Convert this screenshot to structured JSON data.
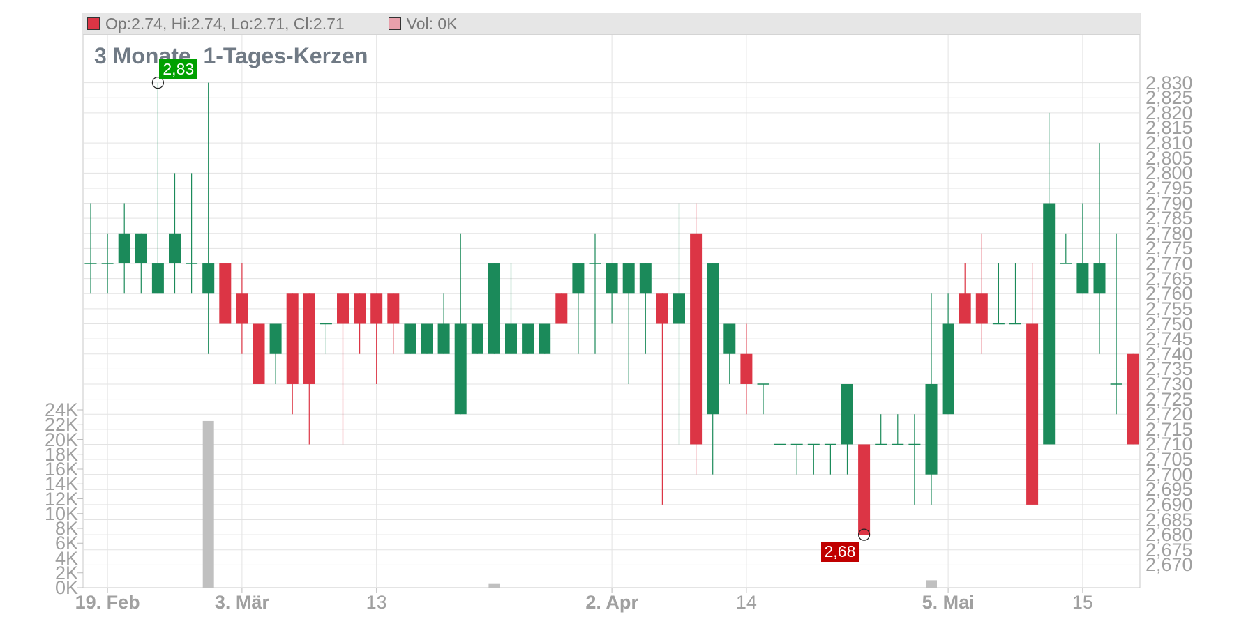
{
  "info_bar": {
    "ohlc_text": "Op:2.74, Hi:2.74, Lo:2.71, Cl:2.71",
    "volume_text": "Vol: 0K",
    "ohlc_swatch_color": "#dc3545",
    "volume_swatch_color": "#e8a0ab"
  },
  "colors": {
    "up": "#1b8a5a",
    "down": "#dc3545",
    "volume": "#c0c0c0",
    "high_flag": "#00a000",
    "low_flag": "#c00000"
  },
  "chart_data": {
    "type": "candlestick",
    "title": "3 Monate, 1-Tages-Kerzen",
    "price_axis": {
      "range": [
        2.665,
        2.835
      ],
      "ticks": [
        "2,830",
        "2,825",
        "2,820",
        "2,815",
        "2,810",
        "2,805",
        "2,800",
        "2,795",
        "2,790",
        "2,785",
        "2,780",
        "2,775",
        "2,770",
        "2,765",
        "2,760",
        "2,755",
        "2,750",
        "2,745",
        "2,740",
        "2,735",
        "2,730",
        "2,725",
        "2,720",
        "2,715",
        "2,710",
        "2,705",
        "2,700",
        "2,695",
        "2,690",
        "2,685",
        "2,680",
        "2,675",
        "2,670"
      ]
    },
    "volume_axis": {
      "range": [
        0,
        24000
      ],
      "ticks": [
        "24K",
        "22K",
        "20K",
        "18K",
        "16K",
        "14K",
        "12K",
        "10K",
        "8K",
        "6K",
        "4K",
        "2K",
        "0K"
      ]
    },
    "x_axis": [
      {
        "label": "19. Feb",
        "index": 1,
        "bold": true
      },
      {
        "label": "3. Mär",
        "index": 9,
        "bold": true
      },
      {
        "label": "13",
        "index": 17,
        "bold": false
      },
      {
        "label": "2. Apr",
        "index": 31,
        "bold": true
      },
      {
        "label": "14",
        "index": 39,
        "bold": false
      },
      {
        "label": "5. Mai",
        "index": 51,
        "bold": true
      },
      {
        "label": "15",
        "index": 59,
        "bold": false
      }
    ],
    "high_marker": {
      "label": "2,83",
      "index": 4,
      "value": 2.83
    },
    "low_marker": {
      "label": "2,68",
      "index": 46,
      "value": 2.68
    },
    "candles": [
      {
        "o": 2.77,
        "h": 2.79,
        "l": 2.76,
        "c": 2.77
      },
      {
        "o": 2.77,
        "h": 2.78,
        "l": 2.76,
        "c": 2.77
      },
      {
        "o": 2.77,
        "h": 2.79,
        "l": 2.76,
        "c": 2.78
      },
      {
        "o": 2.77,
        "h": 2.78,
        "l": 2.76,
        "c": 2.78
      },
      {
        "o": 2.76,
        "h": 2.83,
        "l": 2.76,
        "c": 2.77
      },
      {
        "o": 2.77,
        "h": 2.8,
        "l": 2.76,
        "c": 2.78
      },
      {
        "o": 2.77,
        "h": 2.8,
        "l": 2.76,
        "c": 2.77
      },
      {
        "o": 2.76,
        "h": 2.83,
        "l": 2.74,
        "c": 2.77
      },
      {
        "o": 2.77,
        "h": 2.77,
        "l": 2.75,
        "c": 2.75
      },
      {
        "o": 2.76,
        "h": 2.77,
        "l": 2.74,
        "c": 2.75
      },
      {
        "o": 2.75,
        "h": 2.75,
        "l": 2.73,
        "c": 2.73
      },
      {
        "o": 2.74,
        "h": 2.75,
        "l": 2.73,
        "c": 2.75
      },
      {
        "o": 2.76,
        "h": 2.76,
        "l": 2.72,
        "c": 2.73
      },
      {
        "o": 2.76,
        "h": 2.76,
        "l": 2.71,
        "c": 2.73
      },
      {
        "o": 2.75,
        "h": 2.75,
        "l": 2.74,
        "c": 2.75
      },
      {
        "o": 2.76,
        "h": 2.76,
        "l": 2.71,
        "c": 2.75
      },
      {
        "o": 2.76,
        "h": 2.76,
        "l": 2.74,
        "c": 2.75
      },
      {
        "o": 2.76,
        "h": 2.76,
        "l": 2.73,
        "c": 2.75
      },
      {
        "o": 2.76,
        "h": 2.76,
        "l": 2.74,
        "c": 2.75
      },
      {
        "o": 2.74,
        "h": 2.75,
        "l": 2.74,
        "c": 2.75
      },
      {
        "o": 2.74,
        "h": 2.75,
        "l": 2.74,
        "c": 2.75
      },
      {
        "o": 2.74,
        "h": 2.76,
        "l": 2.74,
        "c": 2.75
      },
      {
        "o": 2.72,
        "h": 2.78,
        "l": 2.72,
        "c": 2.75
      },
      {
        "o": 2.74,
        "h": 2.75,
        "l": 2.74,
        "c": 2.75
      },
      {
        "o": 2.74,
        "h": 2.77,
        "l": 2.74,
        "c": 2.77
      },
      {
        "o": 2.74,
        "h": 2.77,
        "l": 2.74,
        "c": 2.75
      },
      {
        "o": 2.74,
        "h": 2.75,
        "l": 2.74,
        "c": 2.75
      },
      {
        "o": 2.74,
        "h": 2.75,
        "l": 2.74,
        "c": 2.75
      },
      {
        "o": 2.76,
        "h": 2.76,
        "l": 2.75,
        "c": 2.75
      },
      {
        "o": 2.76,
        "h": 2.77,
        "l": 2.74,
        "c": 2.77
      },
      {
        "o": 2.77,
        "h": 2.78,
        "l": 2.74,
        "c": 2.77
      },
      {
        "o": 2.76,
        "h": 2.77,
        "l": 2.75,
        "c": 2.77
      },
      {
        "o": 2.76,
        "h": 2.77,
        "l": 2.73,
        "c": 2.77
      },
      {
        "o": 2.76,
        "h": 2.77,
        "l": 2.74,
        "c": 2.77
      },
      {
        "o": 2.76,
        "h": 2.76,
        "l": 2.69,
        "c": 2.75
      },
      {
        "o": 2.75,
        "h": 2.79,
        "l": 2.71,
        "c": 2.76
      },
      {
        "o": 2.78,
        "h": 2.79,
        "l": 2.7,
        "c": 2.71
      },
      {
        "o": 2.72,
        "h": 2.77,
        "l": 2.7,
        "c": 2.77
      },
      {
        "o": 2.74,
        "h": 2.75,
        "l": 2.73,
        "c": 2.75
      },
      {
        "o": 2.74,
        "h": 2.75,
        "l": 2.72,
        "c": 2.73
      },
      {
        "o": 2.73,
        "h": 2.73,
        "l": 2.72,
        "c": 2.73
      },
      {
        "o": 2.71,
        "h": 2.71,
        "l": 2.71,
        "c": 2.71
      },
      {
        "o": 2.71,
        "h": 2.71,
        "l": 2.7,
        "c": 2.71
      },
      {
        "o": 2.71,
        "h": 2.71,
        "l": 2.7,
        "c": 2.71
      },
      {
        "o": 2.71,
        "h": 2.71,
        "l": 2.7,
        "c": 2.71
      },
      {
        "o": 2.71,
        "h": 2.73,
        "l": 2.7,
        "c": 2.73
      },
      {
        "o": 2.71,
        "h": 2.71,
        "l": 2.68,
        "c": 2.68
      },
      {
        "o": 2.71,
        "h": 2.72,
        "l": 2.71,
        "c": 2.71
      },
      {
        "o": 2.71,
        "h": 2.72,
        "l": 2.71,
        "c": 2.71
      },
      {
        "o": 2.71,
        "h": 2.72,
        "l": 2.69,
        "c": 2.71
      },
      {
        "o": 2.7,
        "h": 2.76,
        "l": 2.69,
        "c": 2.73
      },
      {
        "o": 2.72,
        "h": 2.76,
        "l": 2.72,
        "c": 2.75
      },
      {
        "o": 2.76,
        "h": 2.77,
        "l": 2.75,
        "c": 2.75
      },
      {
        "o": 2.76,
        "h": 2.78,
        "l": 2.74,
        "c": 2.75
      },
      {
        "o": 2.75,
        "h": 2.77,
        "l": 2.75,
        "c": 2.75
      },
      {
        "o": 2.75,
        "h": 2.77,
        "l": 2.75,
        "c": 2.75
      },
      {
        "o": 2.75,
        "h": 2.77,
        "l": 2.69,
        "c": 2.69
      },
      {
        "o": 2.71,
        "h": 2.82,
        "l": 2.71,
        "c": 2.79
      },
      {
        "o": 2.77,
        "h": 2.78,
        "l": 2.77,
        "c": 2.77
      },
      {
        "o": 2.76,
        "h": 2.79,
        "l": 2.76,
        "c": 2.77
      },
      {
        "o": 2.76,
        "h": 2.81,
        "l": 2.74,
        "c": 2.77
      },
      {
        "o": 2.73,
        "h": 2.78,
        "l": 2.72,
        "c": 2.73
      },
      {
        "o": 2.74,
        "h": 2.74,
        "l": 2.71,
        "c": 2.71
      }
    ],
    "volumes": [
      0,
      0,
      0,
      0,
      0,
      0,
      0,
      22500,
      0,
      0,
      0,
      0,
      0,
      0,
      0,
      0,
      0,
      0,
      0,
      0,
      0,
      0,
      0,
      0,
      500,
      0,
      0,
      0,
      0,
      0,
      0,
      0,
      0,
      0,
      0,
      0,
      0,
      0,
      0,
      0,
      0,
      0,
      0,
      0,
      0,
      0,
      0,
      0,
      0,
      0,
      1000,
      0,
      0,
      0,
      0,
      0,
      0,
      0,
      0,
      0,
      0,
      0,
      0
    ]
  }
}
